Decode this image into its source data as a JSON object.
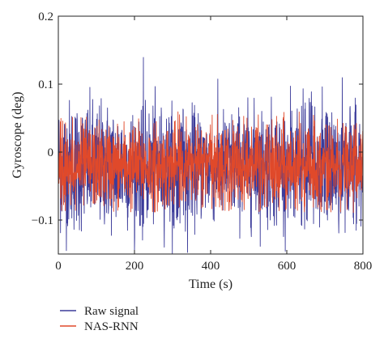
{
  "chart_data": {
    "type": "line",
    "title": "",
    "xlabel": "Time (s)",
    "ylabel": "Gyroscope (deg)",
    "xlim": [
      0,
      800
    ],
    "ylim": [
      -0.15,
      0.2
    ],
    "xticks": [
      0,
      200,
      400,
      600,
      800
    ],
    "xtick_labels": [
      "0",
      "200",
      "400",
      "600",
      "800"
    ],
    "yticks": [
      -0.1,
      0,
      0.1,
      0.2
    ],
    "ytick_labels": [
      "−0.1",
      "0",
      "0.1",
      "0.2"
    ],
    "grid": false,
    "legend_position": "bottom-left, below the plot",
    "series": [
      {
        "name": "Raw signal",
        "color": "#3b3b9a",
        "description_of_values": "dense noise centered near -0.02, mostly within ±0.07, peaks up to about 0.14 and down to about -0.15",
        "mean": -0.02,
        "typical_range": [
          -0.09,
          0.05
        ],
        "extremes": [
          -0.15,
          0.14
        ]
      },
      {
        "name": "NAS-RNN",
        "color": "#e0492a",
        "mean": -0.02,
        "typical_range": [
          -0.07,
          0.04
        ],
        "extremes": [
          -0.09,
          0.06
        ]
      }
    ]
  },
  "legend": {
    "items": [
      {
        "label": "Raw signal",
        "color": "#3b3b9a"
      },
      {
        "label": "NAS-RNN",
        "color": "#e0492a"
      }
    ]
  }
}
